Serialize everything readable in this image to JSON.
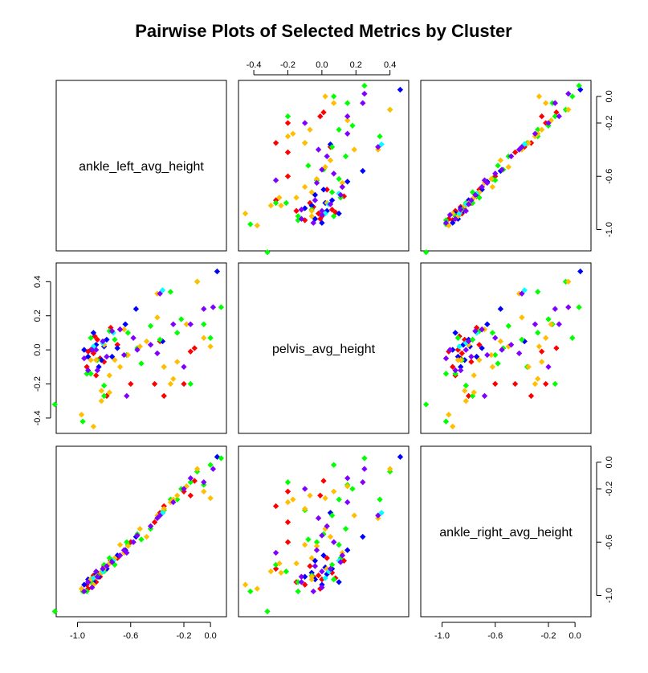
{
  "chart_data": {
    "type": "scatter",
    "title": "Pairwise Plots of Selected Metrics by Cluster",
    "variables": [
      "ankle_left_avg_height",
      "pelvis_avg_height",
      "ankle_right_avg_height"
    ],
    "axis_ranges": {
      "ankle_left_avg_height": [
        -1.16,
        0.12
      ],
      "pelvis_avg_height": [
        -0.49,
        0.51
      ],
      "ankle_right_avg_height": [
        -1.16,
        0.12
      ]
    },
    "ticks": {
      "ankle_left_avg_height": [
        -1.0,
        -0.6,
        -0.2,
        0.0
      ],
      "pelvis_avg_height": [
        -0.4,
        -0.2,
        0.0,
        0.2,
        0.4
      ],
      "ankle_right_avg_height": [
        -1.0,
        -0.6,
        -0.2,
        0.0
      ]
    },
    "tick_labels": {
      "ankle_left_avg_height": [
        "-1.0",
        "-0.6",
        "-0.2",
        "0.0"
      ],
      "pelvis_avg_height": [
        "-0.4",
        "-0.2",
        "0.0",
        "0.2",
        "0.4"
      ],
      "ankle_right_avg_height": [
        "-1.0",
        "-0.6",
        "-0.2",
        "0.0"
      ]
    },
    "clusters": [
      {
        "color": "#FF0000",
        "points": [
          [
            -0.93,
            -0.1,
            -0.92
          ],
          [
            -0.88,
            -0.02,
            -0.85
          ],
          [
            -0.85,
            0.06,
            -0.83
          ],
          [
            -0.9,
            0.0,
            -0.88
          ],
          [
            -0.8,
            -0.07,
            -0.78
          ],
          [
            -0.75,
            0.13,
            -0.74
          ],
          [
            -0.7,
            0.03,
            -0.72
          ],
          [
            -0.86,
            -0.15,
            -0.9
          ],
          [
            -0.83,
            -0.05,
            -0.86
          ],
          [
            -0.78,
            -0.27,
            -0.8
          ],
          [
            -0.6,
            -0.2,
            -0.6
          ],
          [
            -0.42,
            -0.2,
            -0.45
          ],
          [
            -0.35,
            -0.27,
            -0.33
          ],
          [
            -0.15,
            -0.01,
            -0.25
          ],
          [
            -0.12,
            0.01,
            -0.14
          ],
          [
            -0.2,
            -0.2,
            -0.22
          ],
          [
            -0.38,
            0.05,
            -0.38
          ],
          [
            -0.87,
            0.08,
            -0.87
          ],
          [
            -0.92,
            -0.01,
            -0.95
          ],
          [
            -0.68,
            0.12,
            -0.7
          ]
        ]
      },
      {
        "color": "#0000FF",
        "points": [
          [
            -0.92,
            -0.04,
            -0.88
          ],
          [
            -0.86,
            0.03,
            -0.84
          ],
          [
            -0.82,
            -0.06,
            -0.83
          ],
          [
            -0.78,
            0.06,
            -0.8
          ],
          [
            -0.74,
            -0.04,
            -0.74
          ],
          [
            -0.64,
            0.15,
            -0.66
          ],
          [
            -0.56,
            0.24,
            -0.56
          ],
          [
            -0.88,
            0.1,
            -0.9
          ],
          [
            -0.84,
            -0.1,
            -0.86
          ],
          [
            -0.36,
            0.05,
            -0.38
          ],
          [
            0.05,
            0.46,
            0.04
          ],
          [
            -0.8,
            0.02,
            -0.79
          ],
          [
            -0.95,
            0.0,
            -0.92
          ],
          [
            -0.7,
            0.01,
            -0.7
          ]
        ]
      },
      {
        "color": "#00FF00",
        "points": [
          [
            -1.17,
            -0.32,
            -1.12
          ],
          [
            -0.93,
            -0.14,
            -0.97
          ],
          [
            -0.9,
            0.07,
            -0.88
          ],
          [
            -0.85,
            -0.06,
            -0.85
          ],
          [
            -0.8,
            -0.21,
            -0.82
          ],
          [
            -0.76,
            0.11,
            -0.72
          ],
          [
            -0.72,
            0.06,
            -0.77
          ],
          [
            -0.63,
            -0.03,
            -0.6
          ],
          [
            -0.55,
            0.01,
            -0.54
          ],
          [
            -0.45,
            0.14,
            -0.5
          ],
          [
            -0.38,
            0.06,
            -0.4
          ],
          [
            -0.3,
            0.34,
            -0.28
          ],
          [
            -0.25,
            0.1,
            -0.28
          ],
          [
            -0.1,
            0.4,
            -0.07
          ],
          [
            -0.05,
            0.15,
            -0.17
          ],
          [
            -0.15,
            -0.2,
            -0.15
          ],
          [
            0.08,
            0.25,
            0.03
          ],
          [
            -0.96,
            -0.42,
            -0.97
          ],
          [
            -0.8,
            -0.27,
            -0.77
          ],
          [
            -0.62,
            0.1,
            -0.62
          ],
          [
            -0.52,
            -0.08,
            -0.58
          ],
          [
            -0.9,
            -0.14,
            -0.9
          ],
          [
            -0.22,
            0.18,
            -0.2
          ],
          [
            -0.35,
            -0.1,
            -0.36
          ],
          [
            0.0,
            0.07,
            -0.02
          ]
        ]
      },
      {
        "color": "#FFBF00",
        "points": [
          [
            -0.97,
            -0.38,
            -0.95
          ],
          [
            -0.88,
            -0.45,
            -0.92
          ],
          [
            -0.86,
            -0.06,
            -0.86
          ],
          [
            -0.82,
            -0.24,
            -0.83
          ],
          [
            -0.8,
            0.03,
            -0.8
          ],
          [
            -0.76,
            -0.25,
            -0.76
          ],
          [
            -0.72,
            -0.06,
            -0.72
          ],
          [
            -0.68,
            -0.1,
            -0.62
          ],
          [
            -0.62,
            -0.03,
            -0.63
          ],
          [
            -0.48,
            0.05,
            -0.56
          ],
          [
            -0.4,
            0.33,
            -0.42
          ],
          [
            -0.35,
            -0.1,
            -0.35
          ],
          [
            -0.3,
            -0.2,
            -0.3
          ],
          [
            -0.25,
            -0.07,
            -0.25
          ],
          [
            -0.18,
            0.15,
            -0.18
          ],
          [
            -0.1,
            0.4,
            -0.05
          ],
          [
            -0.05,
            0.07,
            -0.22
          ],
          [
            0.0,
            0.02,
            -0.27
          ],
          [
            -0.9,
            -0.06,
            -0.88
          ],
          [
            -0.76,
            -0.15,
            -0.76
          ],
          [
            -0.65,
            0.12,
            -0.68
          ],
          [
            -0.53,
            0.02,
            -0.5
          ],
          [
            -0.28,
            -0.17,
            -0.28
          ],
          [
            -0.4,
            0.19,
            -0.4
          ],
          [
            -0.82,
            -0.3,
            -0.82
          ]
        ]
      },
      {
        "color": "#00FFFF",
        "points": [
          [
            -0.88,
            0.02,
            -0.87
          ],
          [
            -0.81,
            0.04,
            -0.82
          ],
          [
            -0.36,
            0.35,
            -0.38
          ],
          [
            -0.73,
            0.1,
            -0.74
          ]
        ]
      },
      {
        "color": "#8000FF",
        "points": [
          [
            -0.92,
            -0.12,
            -0.9
          ],
          [
            -0.89,
            0.0,
            -0.94
          ],
          [
            -0.85,
            -0.12,
            -0.86
          ],
          [
            -0.81,
            0.05,
            -0.8
          ],
          [
            -0.78,
            -0.04,
            -0.78
          ],
          [
            -0.74,
            0.11,
            -0.75
          ],
          [
            -0.68,
            0.12,
            -0.7
          ],
          [
            -0.65,
            -0.03,
            -0.66
          ],
          [
            -0.58,
            0.07,
            -0.6
          ],
          [
            -0.45,
            0.03,
            -0.48
          ],
          [
            -0.38,
            0.33,
            -0.4
          ],
          [
            -0.28,
            0.15,
            -0.3
          ],
          [
            -0.2,
            -0.1,
            -0.2
          ],
          [
            -0.15,
            0.15,
            -0.12
          ],
          [
            -0.05,
            0.24,
            -0.15
          ],
          [
            0.02,
            0.25,
            -0.05
          ],
          [
            -0.95,
            -0.05,
            -0.97
          ],
          [
            -0.86,
            0.0,
            -0.82
          ],
          [
            -0.63,
            -0.27,
            -0.68
          ],
          [
            -0.4,
            -0.02,
            -0.42
          ],
          [
            -0.55,
            0.0,
            -0.55
          ]
        ]
      }
    ]
  }
}
